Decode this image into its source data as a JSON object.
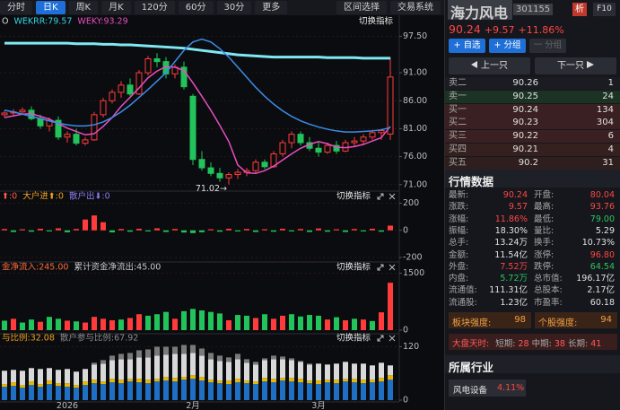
{
  "toolbar": {
    "buttons": [
      "分时",
      "日K",
      "周K",
      "月K",
      "120分",
      "60分",
      "30分",
      "更多"
    ],
    "tools": [
      "区间选择",
      "交易系统"
    ]
  },
  "chart_data": [
    {
      "type": "candlestick",
      "header": [
        {
          "text": "O",
          "color": "#dddddd"
        },
        {
          "text": "WEKRR:79.57",
          "color": "#35d4e6"
        },
        {
          "text": "WEKY:93.29",
          "color": "#e84fc0"
        }
      ],
      "switch_label": "切换指标",
      "up_color": "#ff3b3b",
      "down_color": "#22c35b",
      "open": [
        83.5,
        83.8,
        84,
        84.3,
        82.8,
        81.5,
        82.5,
        79.5,
        80,
        78.4,
        79,
        83.5,
        86,
        87.5,
        88.8,
        87.2,
        91,
        93.5,
        93,
        90.8,
        92,
        86.8,
        75.5,
        74,
        73,
        72.2,
        72.8,
        73.2,
        73.5,
        75,
        74.2,
        76.5,
        78.5,
        80,
        78.5,
        77.5,
        76.8,
        78,
        77,
        78.5,
        78.8,
        79.5,
        80.3,
        80.04
      ],
      "high": [
        84.2,
        84.5,
        84.8,
        85,
        83.5,
        83,
        83.2,
        80.5,
        81,
        79.5,
        84,
        86.5,
        88,
        89.5,
        90,
        91.5,
        94,
        94.5,
        93.8,
        92.5,
        93,
        87.2,
        77,
        75,
        74,
        73.2,
        73.8,
        74,
        75.5,
        75.5,
        77,
        79,
        80.5,
        80.5,
        79.5,
        78.5,
        78.5,
        78.8,
        79,
        79.5,
        80,
        80.8,
        81,
        93.76
      ],
      "low": [
        83,
        83.2,
        83.5,
        82.5,
        81,
        80.5,
        79,
        78.5,
        78,
        78,
        78.8,
        83,
        85.5,
        86.5,
        86.8,
        87,
        90.5,
        92,
        90,
        90,
        88,
        74.5,
        73.5,
        72.5,
        71.5,
        71.02,
        72,
        72.5,
        73,
        73.8,
        74,
        76,
        77.5,
        78,
        77,
        76,
        76.5,
        76.5,
        76.8,
        77.8,
        78,
        79,
        79,
        79
      ],
      "close": [
        83.8,
        84,
        84.3,
        82.8,
        81.5,
        82.5,
        79.5,
        80,
        78.4,
        79,
        83.5,
        86,
        87.5,
        88.8,
        87.2,
        91,
        93.5,
        93,
        90.8,
        92,
        88.5,
        75.5,
        74,
        73,
        72.2,
        72.8,
        73.2,
        73.5,
        75,
        74.2,
        76.5,
        78.5,
        80,
        78.5,
        77.5,
        76.8,
        78,
        77,
        78.5,
        78.8,
        79.5,
        80.3,
        80.67,
        90.24
      ],
      "lines": [
        {
          "color": "#7fe9f2",
          "width": 3,
          "values": [
            96.3,
            96.3,
            96.3,
            96.3,
            96.3,
            96.3,
            96.3,
            96.3,
            96.2,
            96.2,
            96.2,
            96.1,
            96.1,
            96,
            96,
            95.9,
            95.8,
            95.7,
            95.6,
            95.5,
            95.4,
            95.2,
            95,
            94.8,
            94.6,
            94.4,
            94.2,
            94.1,
            94,
            93.9,
            93.8,
            93.8,
            93.8,
            93.8,
            93.8,
            93.8,
            93.7,
            93.7,
            93.7,
            93.7,
            93.6,
            93.6,
            93.6,
            93.6
          ]
        },
        {
          "color": "#e84fc0",
          "width": 1.5,
          "values": [
            83,
            83.3,
            83.6,
            83.7,
            83.2,
            82.7,
            81.9,
            81.1,
            80.5,
            79.9,
            80.1,
            81.4,
            83,
            85,
            86.6,
            88.3,
            90.1,
            91.3,
            92.1,
            92,
            91.4,
            89.2,
            86.8,
            84.3,
            81.6,
            78.7,
            74.5,
            73.1,
            73,
            73.5,
            74.3,
            75.4,
            76.5,
            77.5,
            78.2,
            78.7,
            78.3,
            77.7,
            77.6,
            77.8,
            78.2,
            78.8,
            79.4,
            81.4
          ]
        },
        {
          "color": "#3a8ee8",
          "width": 1.5,
          "values": [
            84.3,
            84,
            83.6,
            83.2,
            82.8,
            82.4,
            82,
            81.7,
            81.5,
            81.5,
            81.7,
            82.2,
            83,
            84,
            85.2,
            86.6,
            88,
            89.5,
            91,
            93,
            95,
            96.5,
            97,
            96.5,
            95.3,
            93.8,
            92,
            90.2,
            88.4,
            86.8,
            85.4,
            84.2,
            83.2,
            82.4,
            81.8,
            81.3,
            80.9,
            80.6,
            80.4,
            80.4,
            80.5,
            80.6,
            80.8,
            81.2
          ]
        }
      ],
      "annotation": "71.02→",
      "ylim": [
        70,
        99.2
      ],
      "yticks": [
        {
          "value": 97.5,
          "label": "97.50"
        },
        {
          "value": 91,
          "label": "91.00"
        },
        {
          "value": 86,
          "label": "86.00"
        },
        {
          "value": 81,
          "label": "81.00"
        },
        {
          "value": 76,
          "label": "76.00"
        },
        {
          "value": 71,
          "label": "71.00"
        }
      ],
      "grid": true
    },
    {
      "type": "bar",
      "header": [
        {
          "text": "⬆:0",
          "color": "#ff5a4a"
        },
        {
          "text": "大户进⬆:0",
          "color": "#f0a020"
        },
        {
          "text": "散户出⬇:0",
          "color": "#8a7cf0"
        }
      ],
      "switch_label": "切换指标",
      "up_color": "#ff3b3b",
      "down_color": "#22c35b",
      "values": [
        10,
        -12,
        8,
        -10,
        12,
        -8,
        15,
        -14,
        10,
        80,
        110,
        60,
        -15,
        10,
        -10,
        12,
        -8,
        15,
        -12,
        10,
        -16,
        -20,
        -14,
        8,
        -10,
        12,
        -8,
        10,
        -12,
        8,
        -10,
        12,
        -8,
        10,
        -12,
        14,
        -10,
        8,
        -12,
        10,
        -8,
        12,
        -10,
        35
      ],
      "ylim": [
        -220,
        230
      ],
      "yticks": [
        200,
        0,
        -200
      ],
      "grid": true
    },
    {
      "type": "grouped_bar",
      "header": [
        {
          "text": "金净流入:245.00",
          "color": "#ff6a3a"
        },
        {
          "text": "累计资金净流出:45.00",
          "color": "#c8c8c8"
        }
      ],
      "switch_label": "切换指标",
      "bars": [
        {
          "color": "#ff3b3b",
          "values": [
            null,
            300,
            null,
            null,
            220,
            null,
            null,
            250,
            null,
            200,
            350,
            300,
            260,
            null,
            320,
            420,
            null,
            null,
            null,
            300,
            null,
            null,
            null,
            null,
            null,
            260,
            null,
            null,
            320,
            null,
            300,
            380,
            null,
            null,
            null,
            null,
            280,
            null,
            260,
            null,
            280,
            null,
            470,
            1250
          ]
        },
        {
          "color": "#22c35b",
          "values": [
            250,
            null,
            200,
            280,
            null,
            350,
            300,
            null,
            230,
            null,
            null,
            null,
            null,
            280,
            null,
            null,
            380,
            420,
            480,
            null,
            500,
            560,
            520,
            480,
            440,
            null,
            400,
            380,
            null,
            420,
            null,
            null,
            420,
            360,
            400,
            380,
            null,
            340,
            null,
            300,
            null,
            240,
            null,
            null
          ]
        }
      ],
      "ylim": [
        0,
        1560
      ],
      "yticks": [
        1500,
        0
      ],
      "grid": true
    },
    {
      "type": "stacked_bar",
      "header": [
        {
          "text": "与比例:32.08",
          "color": "#f0a020"
        },
        {
          "text": "散户参与比例:67.92",
          "color": "#8a8a8a"
        }
      ],
      "switch_label": "切换指标",
      "series": [
        {
          "color": "#1f6fc4",
          "values": [
            30,
            32,
            28,
            34,
            30,
            36,
            32,
            30,
            28,
            34,
            38,
            36,
            40,
            38,
            42,
            40,
            38,
            42,
            44,
            42,
            46,
            48,
            44,
            40,
            38,
            36,
            40,
            38,
            36,
            42,
            40,
            44,
            42,
            40,
            38,
            36,
            40,
            38,
            42,
            40,
            38,
            40,
            42,
            46
          ]
        },
        {
          "color": "#e8b800",
          "values": [
            6,
            8,
            6,
            8,
            6,
            8,
            6,
            8,
            6,
            8,
            8,
            6,
            8,
            8,
            6,
            8,
            8,
            6,
            8,
            8,
            6,
            8,
            8,
            6,
            6,
            8,
            8,
            6,
            6,
            8,
            8,
            6,
            8,
            8,
            6,
            8,
            6,
            8,
            6,
            8,
            8,
            6,
            8,
            10
          ]
        },
        {
          "color": "#d9d9d9",
          "values": [
            30,
            28,
            32,
            30,
            34,
            28,
            30,
            32,
            30,
            28,
            34,
            40,
            42,
            46,
            44,
            48,
            50,
            52,
            50,
            54,
            52,
            50,
            48,
            46,
            44,
            42,
            44,
            40,
            38,
            40,
            44,
            42,
            40,
            38,
            36,
            38,
            34,
            36,
            38,
            34,
            36,
            32,
            34,
            22
          ]
        },
        {
          "color": "#7a7a7a",
          "values": [
            0,
            0,
            0,
            0,
            0,
            0,
            0,
            0,
            0,
            0,
            4,
            8,
            10,
            12,
            14,
            16,
            18,
            20,
            18,
            16,
            20,
            18,
            16,
            14,
            12,
            10,
            12,
            8,
            6,
            4,
            8,
            6,
            4,
            2,
            2,
            0,
            0,
            0,
            0,
            0,
            0,
            0,
            0,
            0
          ]
        }
      ],
      "categories": [
        null,
        null,
        null,
        null,
        null,
        null,
        null,
        "2026",
        null,
        null,
        null,
        null,
        null,
        null,
        null,
        null,
        null,
        null,
        null,
        null,
        null,
        "2月",
        null,
        null,
        null,
        null,
        null,
        null,
        null,
        null,
        null,
        null,
        null,
        null,
        null,
        "3月",
        null,
        null,
        null,
        null,
        null,
        null,
        null,
        null
      ],
      "ylim": [
        0,
        125
      ],
      "yticks": [
        120,
        0
      ],
      "grid": true
    }
  ],
  "quote_panel": {
    "name": "海力风电",
    "code": "301155",
    "analysis": "析",
    "f10": "F10",
    "price": "90.24",
    "change": "+9.57",
    "change_pct": "+11.86%",
    "buttons": [
      "+ 自选",
      "+ 分组",
      "一 分组"
    ],
    "prev": "上一只",
    "next": "下一只",
    "order_book": [
      [
        "卖二",
        "90.26",
        "1"
      ],
      [
        "卖一",
        "90.25",
        "24"
      ],
      [
        "买一",
        "90.24",
        "134"
      ],
      [
        "买二",
        "90.23",
        "304"
      ],
      [
        "买三",
        "90.22",
        "6"
      ],
      [
        "买四",
        "90.21",
        "4"
      ],
      [
        "买五",
        "90.2",
        "31"
      ]
    ],
    "section_title": "行情数据",
    "stats": [
      [
        "最新:",
        "90.24",
        "开盘:",
        "80.04"
      ],
      [
        "涨跌:",
        "9.57",
        "最高:",
        "93.76"
      ],
      [
        "涨幅:",
        "11.86%",
        "最低:",
        "79.00"
      ],
      [
        "振幅:",
        "18.30%",
        "量比:",
        "5.29"
      ],
      [
        "总手:",
        "13.24万",
        "换手:",
        "10.73%"
      ],
      [
        "金额:",
        "11.54亿",
        "涨停:",
        "96.80"
      ],
      [
        "外盘:",
        "7.52万",
        "跌停:",
        "64.54"
      ],
      [
        "内盘:",
        "5.72万",
        "总市值:",
        "196.17亿"
      ],
      [
        "流通值:",
        "111.31亿",
        "总股本:",
        "2.17亿"
      ],
      [
        "流通股:",
        "1.23亿",
        "市盈率:",
        "60.18"
      ]
    ],
    "strength": {
      "sector_label": "板块强度:",
      "sector": "98",
      "stock_label": "个股强度:",
      "stock": "94"
    },
    "market": {
      "label": "大盘天时:",
      "short_label": "短期:",
      "short": "28",
      "mid_label": "中期:",
      "mid": "38",
      "long_label": "长期:",
      "long": "41"
    },
    "industry_title": "所属行业",
    "industry": "风电设备",
    "industry_change": "4.11%"
  }
}
